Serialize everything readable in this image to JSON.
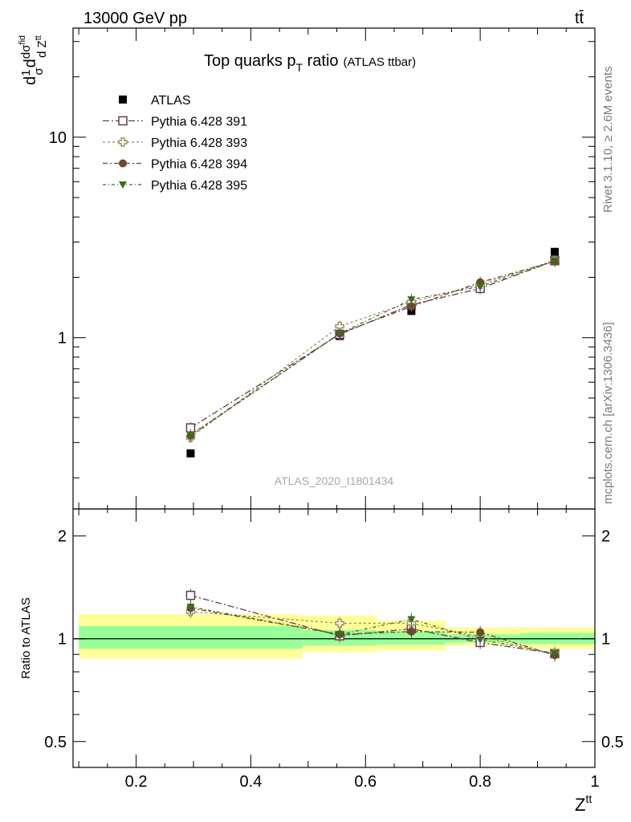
{
  "header": {
    "energy": "13000 GeV pp",
    "process": "tt̄"
  },
  "plot_title": {
    "main": "Top quarks p",
    "sub": "T",
    "rest": " ratio",
    "small": "(ATLAS ttbar)"
  },
  "ylabel_main": "d σ fid / d Zᵗᵗ · 1/σ",
  "side_text": {
    "rivet": "Rivet 3.1.10, ≥ 2.6M events",
    "mcplots": "mcplots.cern.ch [arXiv:1306.3436]"
  },
  "watermark": "ATLAS_2020_I1801434",
  "ratio_ylabel": "Ratio to ATLAS",
  "xlabel": "Zᵗᵗ",
  "colors": {
    "band_yellow": "#ffff99",
    "band_green": "#99ff99",
    "p391": "#6b3a57",
    "p393": "#9c8f62",
    "p394": "#6b4a2e",
    "p395": "#3d6b1e"
  },
  "chart_data": [
    {
      "type": "scatter",
      "panel": "main",
      "yscale": "log",
      "xlim": [
        0.09,
        1.0
      ],
      "ylim": [
        0.14,
        35
      ],
      "x_ticks": [
        "0.2",
        "0.4",
        "0.6",
        "0.8",
        "1"
      ],
      "y_ticks": [
        "1",
        "10"
      ],
      "x": [
        0.295,
        0.555,
        0.68,
        0.8,
        0.93
      ],
      "series": [
        {
          "name": "ATLAS",
          "values": [
            0.265,
            1.02,
            1.36,
            1.81,
            2.68
          ],
          "marker": "square-filled",
          "color": "#000000"
        },
        {
          "name": "Pythia 6.428 391",
          "values": [
            0.355,
            1.04,
            1.46,
            1.76,
            2.42
          ],
          "marker": "square-open",
          "color": "#6b3a57"
        },
        {
          "name": "Pythia 6.428 393",
          "values": [
            0.318,
            1.14,
            1.51,
            1.84,
            2.43
          ],
          "marker": "cross-open",
          "color": "#9c8f62"
        },
        {
          "name": "Pythia 6.428 394",
          "values": [
            0.325,
            1.05,
            1.43,
            1.89,
            2.4
          ],
          "marker": "circle-filled",
          "color": "#6b4a2e"
        },
        {
          "name": "Pythia 6.428 395",
          "values": [
            0.328,
            1.05,
            1.55,
            1.8,
            2.42
          ],
          "marker": "triangle-down-filled",
          "color": "#3d6b1e"
        }
      ]
    },
    {
      "type": "scatter",
      "panel": "ratio",
      "yscale": "log",
      "xlim": [
        0.09,
        1.0
      ],
      "ylim": [
        0.42,
        2.4
      ],
      "y_ticks": [
        "0.5",
        "1",
        "2"
      ],
      "x": [
        0.295,
        0.555,
        0.68,
        0.8,
        0.93
      ],
      "bands": [
        {
          "x0": 0.1,
          "x1": 0.49,
          "yellow": [
            0.875,
            1.18
          ],
          "green": [
            0.935,
            1.09
          ]
        },
        {
          "x0": 0.49,
          "x1": 0.62,
          "yellow": [
            0.915,
            1.17
          ],
          "green": [
            0.955,
            1.06
          ]
        },
        {
          "x0": 0.62,
          "x1": 0.74,
          "yellow": [
            0.925,
            1.13
          ],
          "green": [
            0.96,
            1.05
          ]
        },
        {
          "x0": 0.74,
          "x1": 0.87,
          "yellow": [
            0.955,
            1.08
          ],
          "green": [
            0.975,
            1.03
          ]
        },
        {
          "x0": 0.87,
          "x1": 1.0,
          "yellow": [
            0.935,
            1.08
          ],
          "green": [
            0.965,
            1.04
          ]
        }
      ],
      "series": [
        {
          "name": "Pythia 6.428 391",
          "values": [
            1.34,
            1.02,
            1.07,
            0.975,
            0.905
          ]
        },
        {
          "name": "Pythia 6.428 393",
          "values": [
            1.2,
            1.11,
            1.11,
            1.015,
            0.905
          ]
        },
        {
          "name": "Pythia 6.428 394",
          "values": [
            1.23,
            1.03,
            1.05,
            1.045,
            0.895
          ]
        },
        {
          "name": "Pythia 6.428 395",
          "values": [
            1.24,
            1.03,
            1.14,
            0.995,
            0.905
          ]
        }
      ]
    }
  ]
}
